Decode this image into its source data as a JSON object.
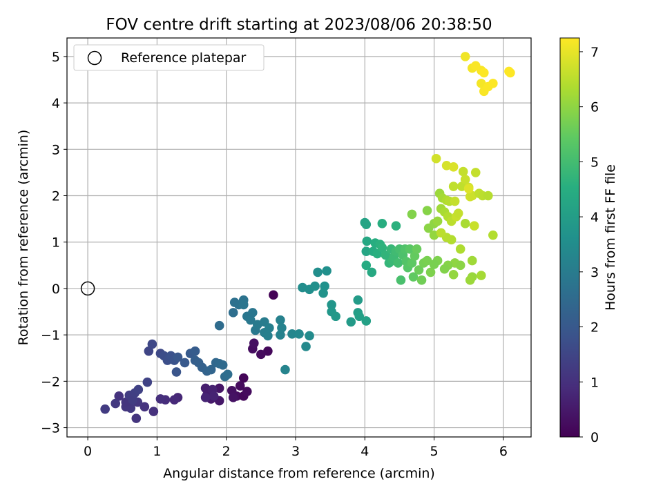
{
  "colors": {
    "grid": "#b0b0b0",
    "axes": "#000000",
    "reference_marker": "#000000",
    "legend_border": "#cccccc",
    "colormap": "viridis"
  },
  "chart_data": {
    "type": "scatter",
    "title": "FOV centre drift starting at 2023/08/06 20:38:50",
    "xlabel": "Angular distance from reference (arcmin)",
    "ylabel": "Rotation from reference (arcmin)",
    "xlim": [
      -0.3,
      6.4
    ],
    "ylim": [
      -3.2,
      5.4
    ],
    "xticks": [
      0,
      1,
      2,
      3,
      4,
      5,
      6
    ],
    "yticks": [
      -3,
      -2,
      -1,
      0,
      1,
      2,
      3,
      4,
      5
    ],
    "grid": true,
    "legend": {
      "placement": "top-left",
      "entries": [
        "Reference platepar"
      ]
    },
    "reference_point": {
      "x": 0,
      "y": 0,
      "label": "Reference platepar"
    },
    "colorbar": {
      "label": "Hours from first FF file",
      "min": 0,
      "max": 7.25,
      "ticks": [
        0,
        1,
        2,
        3,
        4,
        5,
        6,
        7
      ]
    },
    "points": [
      [
        2.68,
        -0.14,
        0.05
      ],
      [
        2.6,
        -1.35,
        0.15
      ],
      [
        2.5,
        -1.42,
        0.2
      ],
      [
        2.38,
        -1.3,
        0.25
      ],
      [
        2.4,
        -1.18,
        0.3
      ],
      [
        2.25,
        -1.93,
        0.1
      ],
      [
        2.2,
        -2.1,
        0.2
      ],
      [
        2.15,
        -2.32,
        0.25
      ],
      [
        2.08,
        -2.2,
        0.3
      ],
      [
        2.1,
        -2.35,
        0.35
      ],
      [
        2.25,
        -2.32,
        0.15
      ],
      [
        2.3,
        -2.22,
        0.2
      ],
      [
        1.9,
        -2.15,
        0.4
      ],
      [
        1.9,
        -2.42,
        0.45
      ],
      [
        1.78,
        -2.38,
        0.5
      ],
      [
        1.72,
        -2.3,
        0.55
      ],
      [
        1.7,
        -2.15,
        0.6
      ],
      [
        1.8,
        -2.18,
        0.65
      ],
      [
        1.82,
        -2.32,
        0.7
      ],
      [
        1.7,
        -2.35,
        0.75
      ],
      [
        1.3,
        -2.35,
        0.8
      ],
      [
        1.25,
        -2.4,
        0.85
      ],
      [
        1.12,
        -2.4,
        0.9
      ],
      [
        1.05,
        -2.38,
        0.95
      ],
      [
        0.95,
        -2.65,
        1.0
      ],
      [
        0.82,
        -2.55,
        1.05
      ],
      [
        0.7,
        -2.8,
        1.1
      ],
      [
        0.72,
        -2.45,
        1.15
      ],
      [
        0.62,
        -2.58,
        1.2
      ],
      [
        0.55,
        -2.55,
        1.15
      ],
      [
        0.55,
        -2.45,
        1.1
      ],
      [
        0.45,
        -2.32,
        1.05
      ],
      [
        0.4,
        -2.48,
        1.2
      ],
      [
        0.25,
        -2.6,
        1.25
      ],
      [
        0.6,
        -2.3,
        1.3
      ],
      [
        0.65,
        -2.4,
        1.3
      ],
      [
        0.68,
        -2.25,
        1.35
      ],
      [
        0.73,
        -2.18,
        1.4
      ],
      [
        0.86,
        -2.02,
        1.45
      ],
      [
        0.88,
        -1.35,
        1.5
      ],
      [
        0.93,
        -1.2,
        1.55
      ],
      [
        1.05,
        -1.4,
        1.6
      ],
      [
        1.1,
        -1.45,
        1.7
      ],
      [
        1.15,
        -1.55,
        1.75
      ],
      [
        1.2,
        -1.45,
        1.8
      ],
      [
        1.25,
        -1.55,
        1.85
      ],
      [
        1.28,
        -1.8,
        1.9
      ],
      [
        1.3,
        -1.48,
        1.95
      ],
      [
        1.4,
        -1.6,
        2.0
      ],
      [
        1.48,
        -1.4,
        2.05
      ],
      [
        1.55,
        -1.35,
        2.1
      ],
      [
        1.55,
        -1.55,
        2.15
      ],
      [
        1.6,
        -1.6,
        2.2
      ],
      [
        1.65,
        -1.7,
        2.25
      ],
      [
        1.72,
        -1.78,
        2.3
      ],
      [
        1.78,
        -1.75,
        2.35
      ],
      [
        1.85,
        -1.6,
        2.4
      ],
      [
        1.9,
        -1.62,
        2.45
      ],
      [
        1.95,
        -1.65,
        2.5
      ],
      [
        1.98,
        -1.9,
        2.55
      ],
      [
        2.02,
        -1.85,
        2.6
      ],
      [
        1.9,
        -0.8,
        2.55
      ],
      [
        2.1,
        -0.52,
        2.6
      ],
      [
        2.12,
        -0.3,
        2.65
      ],
      [
        2.18,
        -0.35,
        2.7
      ],
      [
        2.25,
        -0.25,
        2.75
      ],
      [
        2.25,
        -0.35,
        2.8
      ],
      [
        2.3,
        -0.6,
        2.85
      ],
      [
        2.35,
        -0.68,
        2.9
      ],
      [
        2.38,
        -0.52,
        2.85
      ],
      [
        2.42,
        -0.9,
        2.9
      ],
      [
        2.45,
        -0.78,
        2.95
      ],
      [
        2.55,
        -0.72,
        3.0
      ],
      [
        2.55,
        -0.95,
        3.05
      ],
      [
        2.6,
        -1.02,
        3.1
      ],
      [
        2.62,
        -0.85,
        3.1
      ],
      [
        2.78,
        -0.68,
        3.15
      ],
      [
        2.78,
        -1.0,
        3.2
      ],
      [
        2.8,
        -0.85,
        3.2
      ],
      [
        2.85,
        -1.75,
        3.25
      ],
      [
        2.95,
        -0.98,
        3.3
      ],
      [
        3.05,
        -0.98,
        3.35
      ],
      [
        3.15,
        -1.25,
        3.4
      ],
      [
        3.2,
        -1.02,
        3.45
      ],
      [
        3.1,
        0.02,
        3.5
      ],
      [
        3.2,
        -0.02,
        3.55
      ],
      [
        3.28,
        0.05,
        3.6
      ],
      [
        3.32,
        0.35,
        3.55
      ],
      [
        3.45,
        0.38,
        3.6
      ],
      [
        3.42,
        0.05,
        3.65
      ],
      [
        3.4,
        -0.1,
        3.7
      ],
      [
        3.52,
        -0.35,
        3.75
      ],
      [
        3.52,
        -0.5,
        3.8
      ],
      [
        3.58,
        -0.6,
        3.85
      ],
      [
        3.8,
        -0.72,
        3.9
      ],
      [
        3.9,
        -0.25,
        3.95
      ],
      [
        3.9,
        -0.52,
        4.0
      ],
      [
        3.92,
        -0.6,
        4.05
      ],
      [
        4.02,
        -0.7,
        4.1
      ],
      [
        4.0,
        1.42,
        4.15
      ],
      [
        4.02,
        1.38,
        4.2
      ],
      [
        4.02,
        0.8,
        4.25
      ],
      [
        4.03,
        1.02,
        4.3
      ],
      [
        4.1,
        0.35,
        4.35
      ],
      [
        4.02,
        0.5,
        4.4
      ],
      [
        4.12,
        0.8,
        4.45
      ],
      [
        4.15,
        0.98,
        4.5
      ],
      [
        4.18,
        0.75,
        4.55
      ],
      [
        4.22,
        0.95,
        4.6
      ],
      [
        4.25,
        0.88,
        4.65
      ],
      [
        4.25,
        1.4,
        4.5
      ],
      [
        4.3,
        0.72,
        4.7
      ],
      [
        4.35,
        0.55,
        4.75
      ],
      [
        4.38,
        0.85,
        4.8
      ],
      [
        4.4,
        0.6,
        4.85
      ],
      [
        4.42,
        0.68,
        4.9
      ],
      [
        4.45,
        0.8,
        4.95
      ],
      [
        4.45,
        1.35,
        4.6
      ],
      [
        4.48,
        0.55,
        5.0
      ],
      [
        4.5,
        0.85,
        5.05
      ],
      [
        4.52,
        0.18,
        5.1
      ],
      [
        4.55,
        0.72,
        5.15
      ],
      [
        4.58,
        0.85,
        5.2
      ],
      [
        4.6,
        0.58,
        5.25
      ],
      [
        4.62,
        0.45,
        5.3
      ],
      [
        4.65,
        0.85,
        5.35
      ],
      [
        4.68,
        0.55,
        5.4
      ],
      [
        4.7,
        0.25,
        5.45
      ],
      [
        4.72,
        0.7,
        5.5
      ],
      [
        4.75,
        0.85,
        5.55
      ],
      [
        4.78,
        0.4,
        5.6
      ],
      [
        4.82,
        0.18,
        5.65
      ],
      [
        4.85,
        0.55,
        5.7
      ],
      [
        4.9,
        0.6,
        5.75
      ],
      [
        4.95,
        0.35,
        5.8
      ],
      [
        4.68,
        1.6,
        5.85
      ],
      [
        4.9,
        1.68,
        5.9
      ],
      [
        4.92,
        1.3,
        5.95
      ],
      [
        5.0,
        1.4,
        6.0
      ],
      [
        5.0,
        1.15,
        6.05
      ],
      [
        5.05,
        1.45,
        6.1
      ],
      [
        5.08,
        2.05,
        6.15
      ],
      [
        5.1,
        1.72,
        6.2
      ],
      [
        5.12,
        1.95,
        6.25
      ],
      [
        5.15,
        1.65,
        6.3
      ],
      [
        5.18,
        1.9,
        6.35
      ],
      [
        5.2,
        1.55,
        6.4
      ],
      [
        5.22,
        1.88,
        6.45
      ],
      [
        5.25,
        1.45,
        6.5
      ],
      [
        5.28,
        2.2,
        6.55
      ],
      [
        5.3,
        1.88,
        6.6
      ],
      [
        5.32,
        1.55,
        6.65
      ],
      [
        5.35,
        1.62,
        6.6
      ],
      [
        5.4,
        2.2,
        6.55
      ],
      [
        5.42,
        2.52,
        6.6
      ],
      [
        5.45,
        2.35,
        6.65
      ],
      [
        5.5,
        2.18,
        6.7
      ],
      [
        5.52,
        1.98,
        6.75
      ],
      [
        5.55,
        2.0,
        6.7
      ],
      [
        5.58,
        1.35,
        6.65
      ],
      [
        5.6,
        2.5,
        6.6
      ],
      [
        5.65,
        2.05,
        6.55
      ],
      [
        5.7,
        2.0,
        6.5
      ],
      [
        5.78,
        2.0,
        6.45
      ],
      [
        5.85,
        1.15,
        6.4
      ],
      [
        5.03,
        2.8,
        6.75
      ],
      [
        5.18,
        2.65,
        6.8
      ],
      [
        5.28,
        2.62,
        6.85
      ],
      [
        5.5,
        2.15,
        6.9
      ],
      [
        5.3,
        0.55,
        6.0
      ],
      [
        5.38,
        0.5,
        5.95
      ],
      [
        5.28,
        0.3,
        6.05
      ],
      [
        5.55,
        0.25,
        6.1
      ],
      [
        5.52,
        0.18,
        6.15
      ],
      [
        5.55,
        0.6,
        6.2
      ],
      [
        5.68,
        0.28,
        6.25
      ],
      [
        5.2,
        0.5,
        5.9
      ],
      [
        5.15,
        0.42,
        5.85
      ],
      [
        5.05,
        0.6,
        5.8
      ],
      [
        5.0,
        0.52,
        5.75
      ],
      [
        5.45,
        1.4,
        6.3
      ],
      [
        5.38,
        0.85,
        6.35
      ],
      [
        5.25,
        1.05,
        6.4
      ],
      [
        5.18,
        1.1,
        6.45
      ],
      [
        5.1,
        1.2,
        6.5
      ],
      [
        5.45,
        5.0,
        7.1
      ],
      [
        5.55,
        4.75,
        7.15
      ],
      [
        5.6,
        4.8,
        7.2
      ],
      [
        5.68,
        4.7,
        7.2
      ],
      [
        5.72,
        4.65,
        7.25
      ],
      [
        5.68,
        4.42,
        7.15
      ],
      [
        5.72,
        4.25,
        7.2
      ],
      [
        5.78,
        4.35,
        7.22
      ],
      [
        5.85,
        4.42,
        7.24
      ],
      [
        6.08,
        4.68,
        7.25
      ],
      [
        6.1,
        4.65,
        7.25
      ]
    ]
  }
}
